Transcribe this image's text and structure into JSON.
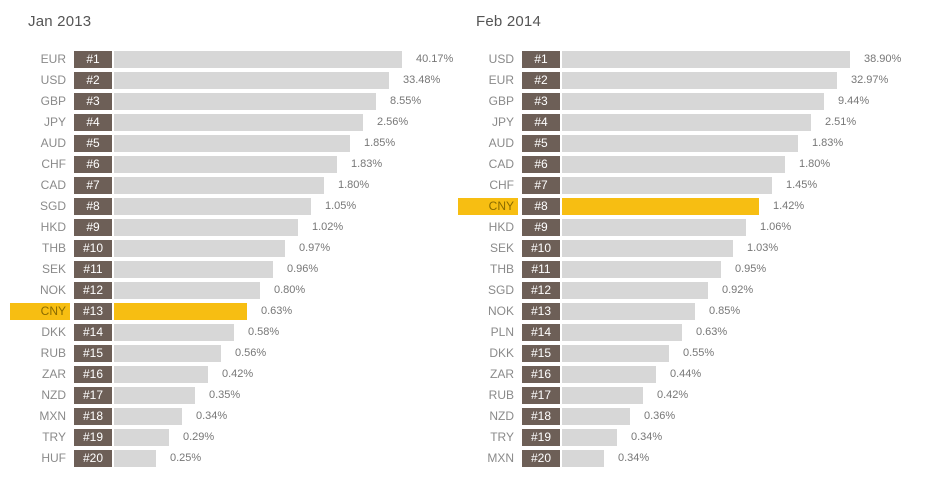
{
  "chart_data": [
    {
      "type": "bar",
      "orientation": "horizontal",
      "title": "Jan 2013",
      "highlight": "CNY",
      "colors": {
        "bar": "#d7d7d7",
        "rank": "#6d5f57",
        "highlight": "#f7be12"
      },
      "categories": [
        "EUR",
        "USD",
        "GBP",
        "JPY",
        "AUD",
        "CHF",
        "CAD",
        "SGD",
        "HKD",
        "THB",
        "SEK",
        "NOK",
        "CNY",
        "DKK",
        "RUB",
        "ZAR",
        "NZD",
        "MXN",
        "TRY",
        "HUF"
      ],
      "ranks": [
        "#1",
        "#2",
        "#3",
        "#4",
        "#5",
        "#6",
        "#7",
        "#8",
        "#9",
        "#10",
        "#11",
        "#12",
        "#13",
        "#14",
        "#15",
        "#16",
        "#17",
        "#18",
        "#19",
        "#20"
      ],
      "labels": [
        "40.17%",
        "33.48%",
        "8.55%",
        "2.56%",
        "1.85%",
        "1.83%",
        "1.80%",
        "1.05%",
        "1.02%",
        "0.97%",
        "0.96%",
        "0.80%",
        "0.63%",
        "0.58%",
        "0.56%",
        "0.42%",
        "0.35%",
        "0.34%",
        "0.29%",
        "0.25%"
      ],
      "values": [
        40.17,
        33.48,
        8.55,
        2.56,
        1.85,
        1.83,
        1.8,
        1.05,
        1.02,
        0.97,
        0.96,
        0.8,
        0.63,
        0.58,
        0.56,
        0.42,
        0.35,
        0.34,
        0.29,
        0.25
      ]
    },
    {
      "type": "bar",
      "orientation": "horizontal",
      "title": "Feb 2014",
      "highlight": "CNY",
      "colors": {
        "bar": "#d7d7d7",
        "rank": "#6d5f57",
        "highlight": "#f7be12"
      },
      "categories": [
        "USD",
        "EUR",
        "GBP",
        "JPY",
        "AUD",
        "CAD",
        "CHF",
        "CNY",
        "HKD",
        "SEK",
        "THB",
        "SGD",
        "NOK",
        "PLN",
        "DKK",
        "ZAR",
        "RUB",
        "NZD",
        "TRY",
        "MXN"
      ],
      "ranks": [
        "#1",
        "#2",
        "#3",
        "#4",
        "#5",
        "#6",
        "#7",
        "#8",
        "#9",
        "#10",
        "#11",
        "#12",
        "#13",
        "#14",
        "#15",
        "#16",
        "#17",
        "#18",
        "#19",
        "#20"
      ],
      "labels": [
        "38.90%",
        "32.97%",
        "9.44%",
        "2.51%",
        "1.83%",
        "1.80%",
        "1.45%",
        "1.42%",
        "1.06%",
        "1.03%",
        "0.95%",
        "0.92%",
        "0.85%",
        "0.63%",
        "0.55%",
        "0.44%",
        "0.42%",
        "0.36%",
        "0.34%",
        "0.34%"
      ],
      "values": [
        38.9,
        32.97,
        9.44,
        2.51,
        1.83,
        1.8,
        1.45,
        1.42,
        1.06,
        1.03,
        0.95,
        0.92,
        0.85,
        0.63,
        0.55,
        0.44,
        0.42,
        0.36,
        0.34,
        0.34
      ]
    }
  ]
}
